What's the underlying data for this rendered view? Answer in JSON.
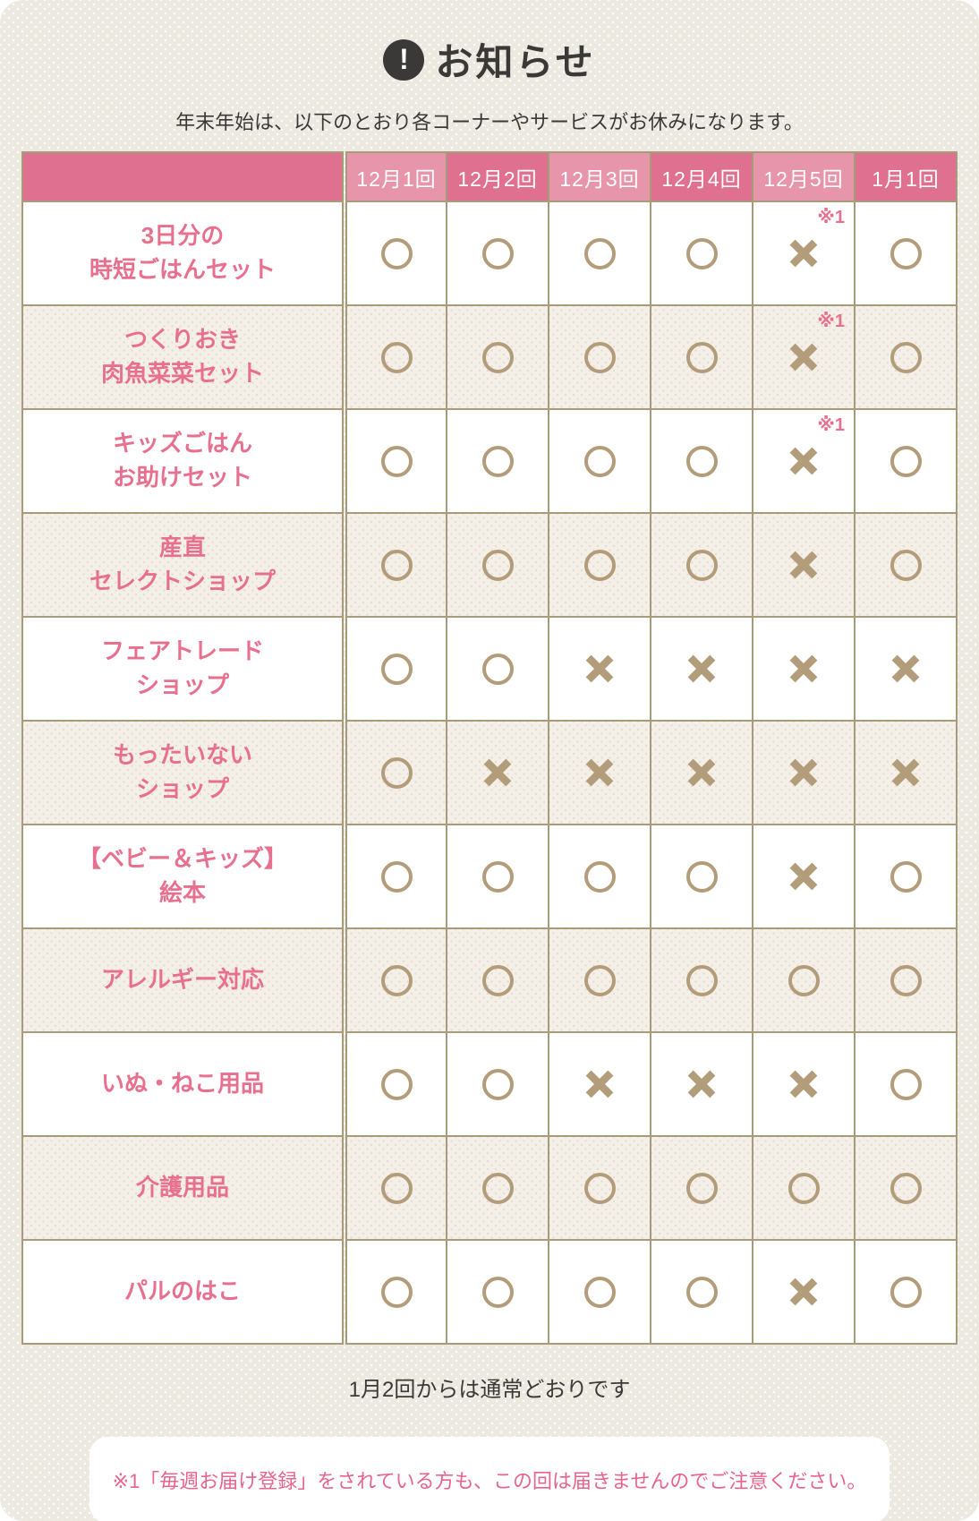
{
  "page": {
    "title": "お知らせ",
    "subtitle": "年末年始は、以下のとおり各コーナーやサービスがお休みになります。",
    "footer_note": "1月2回からは通常どおりです",
    "legend_note": "※1「毎週お届け登録」をされている方も、この回は届きませんのでご注意ください。"
  },
  "icons": {
    "notice_glyph": "!",
    "notice": "exclamation-icon",
    "available": "circle-icon",
    "unavailable": "cross-icon"
  },
  "table": {
    "note_marker": "※1",
    "columns": [
      "12月1回",
      "12月2回",
      "12月3回",
      "12月4回",
      "12月5回",
      "1月1回"
    ],
    "rows": [
      {
        "label": "3日分の\n時短ごはんセット",
        "marks": [
          "o",
          "o",
          "o",
          "o",
          "x1",
          "o"
        ]
      },
      {
        "label": "つくりおき\n肉魚菜菜セット",
        "marks": [
          "o",
          "o",
          "o",
          "o",
          "x1",
          "o"
        ]
      },
      {
        "label": "キッズごはん\nお助けセット",
        "marks": [
          "o",
          "o",
          "o",
          "o",
          "x1",
          "o"
        ]
      },
      {
        "label": "産直\nセレクトショップ",
        "marks": [
          "o",
          "o",
          "o",
          "o",
          "x",
          "o"
        ]
      },
      {
        "label": "フェアトレード\nショップ",
        "marks": [
          "o",
          "o",
          "x",
          "x",
          "x",
          "x"
        ]
      },
      {
        "label": "もったいない\nショップ",
        "marks": [
          "o",
          "x",
          "x",
          "x",
          "x",
          "x"
        ]
      },
      {
        "label": "【ベビー＆キッズ】\n絵本",
        "marks": [
          "o",
          "o",
          "o",
          "o",
          "x",
          "o"
        ]
      },
      {
        "label": "アレルギー対応",
        "marks": [
          "o",
          "o",
          "o",
          "o",
          "o",
          "o"
        ]
      },
      {
        "label": "いぬ・ねこ用品",
        "marks": [
          "o",
          "o",
          "x",
          "x",
          "x",
          "o"
        ]
      },
      {
        "label": "介護用品",
        "marks": [
          "o",
          "o",
          "o",
          "o",
          "o",
          "o"
        ]
      },
      {
        "label": "パルのはこ",
        "marks": [
          "o",
          "o",
          "o",
          "o",
          "x",
          "o"
        ]
      }
    ]
  },
  "colors": {
    "card_bg": "#ECE9E1",
    "row_white": "#FFFFFF",
    "row_beige": "#F3F0E8",
    "header_pink_dark": "#E0708F",
    "header_pink_light": "#E795AA",
    "label_pink": "#E8708F",
    "mark_tan": "#B39C79",
    "border_tan": "#A69C7C",
    "text_dark": "#3B3938",
    "note_pink": "#E7648C"
  }
}
